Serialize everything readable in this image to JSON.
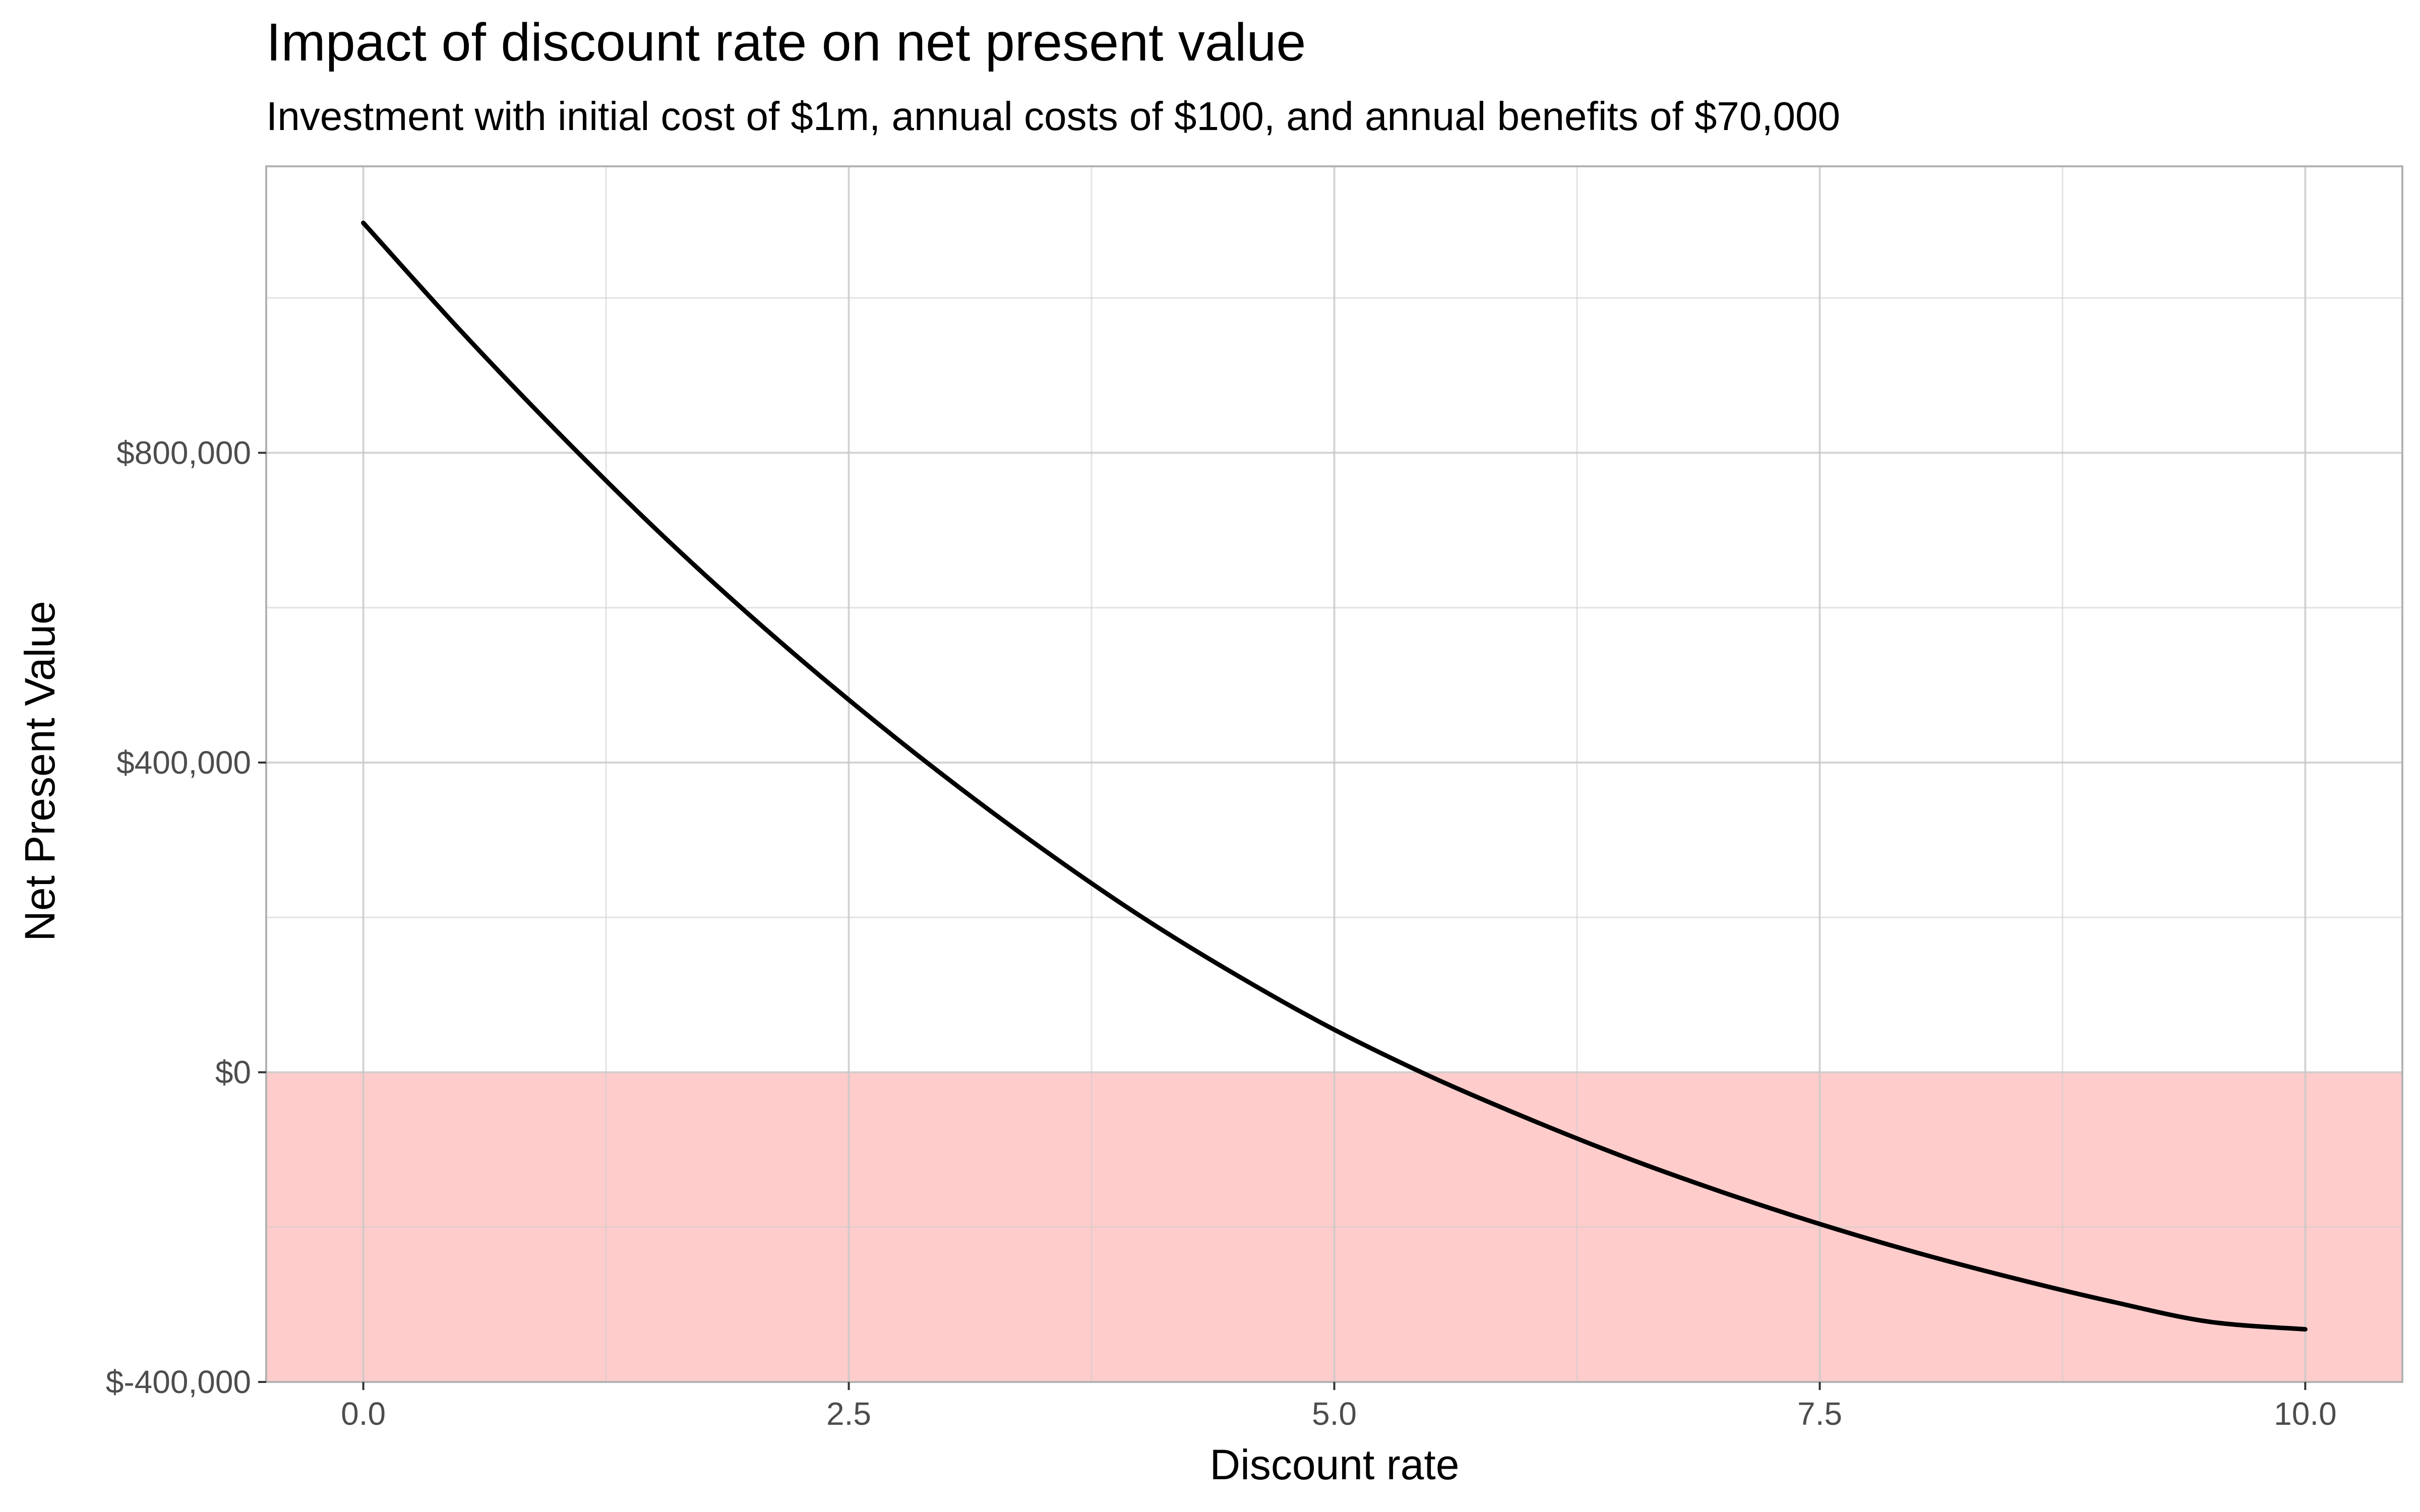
{
  "chart_data": {
    "type": "line",
    "title": "Impact of discount rate on net present value",
    "subtitle": "Investment with initial cost of $1m, annual costs of $100, and annual benefits of $70,000",
    "xlabel": "Discount rate",
    "ylabel": "Net Present Value",
    "xlim": [
      -0.5,
      10.5
    ],
    "ylim": [
      -400000,
      1170000
    ],
    "x_ticks": [
      0,
      2.5,
      5,
      7.5,
      10
    ],
    "x_tick_labels": [
      "0.0",
      "2.5",
      "5.0",
      "7.5",
      "10.0"
    ],
    "y_ticks": [
      -400000,
      0,
      400000,
      800000
    ],
    "y_tick_labels": [
      "$-400,000",
      "$0",
      "$400,000",
      "$800,000"
    ],
    "grid": true,
    "negative_region": {
      "from": -400000,
      "to": 0,
      "color": "#ffcccc"
    },
    "line_color": "#000000",
    "series": [
      {
        "x": [
          0,
          0.5,
          1,
          1.5,
          2,
          2.5,
          3,
          3.5,
          4,
          4.5,
          5,
          5.5,
          6,
          6.5,
          7,
          7.5,
          8,
          8.5,
          9,
          9.5,
          10
        ],
        "values": [
          1097000,
          958000,
          827000,
          703000,
          588000,
          481000,
          381000,
          288000,
          202000,
          125000,
          55000,
          -6000,
          -60000,
          -110000,
          -155000,
          -196000,
          -233000,
          -266000,
          -296000,
          -322000,
          -332000
        ]
      }
    ]
  }
}
